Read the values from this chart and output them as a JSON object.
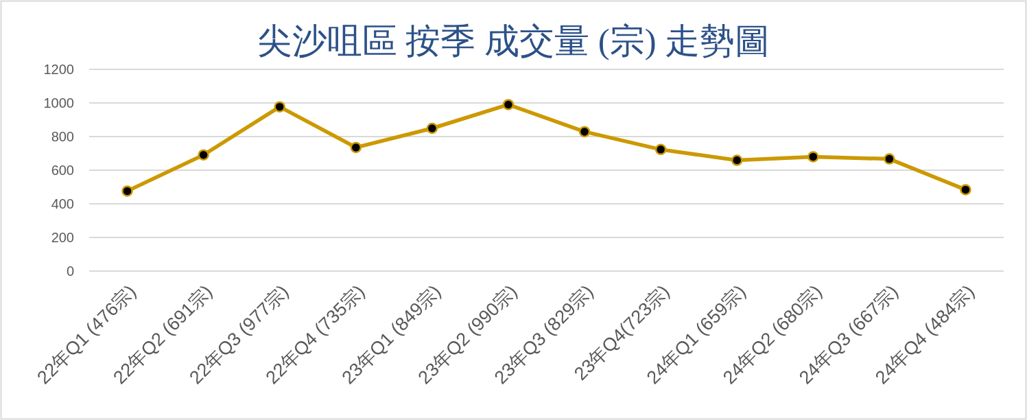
{
  "chart_data": {
    "type": "line",
    "title": "尖沙咀區 按季 成交量 (宗) 走勢圖",
    "categories": [
      "22年Q1 (476宗)",
      "22年Q2 (691宗)",
      "22年Q3 (977宗)",
      "22年Q4 (735宗)",
      "23年Q1 (849宗)",
      "23年Q2 (990宗)",
      "23年Q3 (829宗)",
      "23年Q4(723宗)",
      "24年Q1 (659宗)",
      "24年Q2 (680宗)",
      "24年Q3 (667宗)",
      "24年Q4 (484宗)"
    ],
    "values": [
      476,
      691,
      977,
      735,
      849,
      990,
      829,
      723,
      659,
      680,
      667,
      484
    ],
    "color": "#cc9900",
    "ylim": [
      0,
      1200
    ],
    "yticks": [
      0,
      200,
      400,
      600,
      800,
      1000,
      1200
    ],
    "grid": "y",
    "marker": "circle",
    "line_style": "solid"
  }
}
